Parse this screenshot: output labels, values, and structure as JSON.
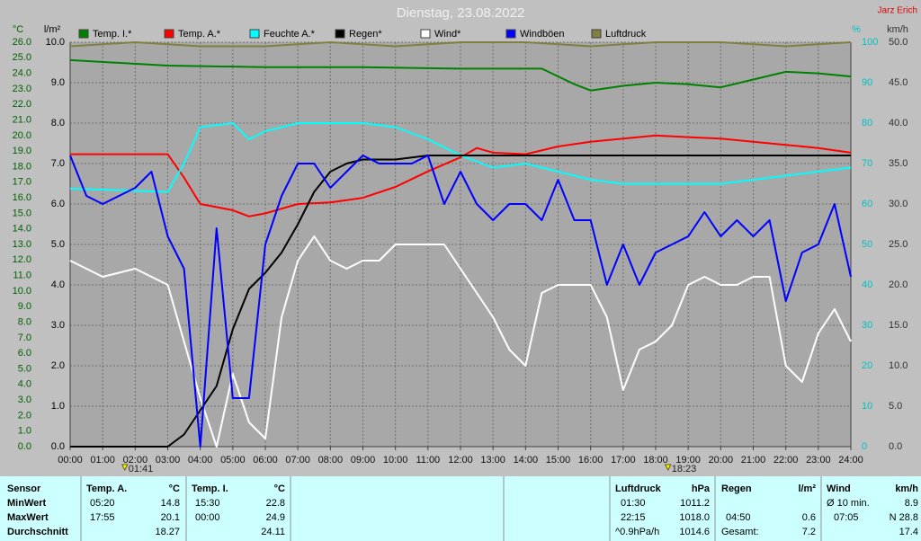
{
  "chart_data": {
    "type": "line",
    "title": "Dienstag, 23.08.2022",
    "author": "Jarz Erich",
    "ylabel": "°C",
    "y2label": "l/m²",
    "y3label": "%",
    "y4label": "km/h",
    "xlim": [
      0,
      24
    ],
    "xticks": [
      {
        "value": 0,
        "label": "00:00"
      },
      {
        "value": 1,
        "label": "01:00"
      },
      {
        "value": 2,
        "label": "02:00"
      },
      {
        "value": 3,
        "label": "03:00"
      },
      {
        "value": 4,
        "label": "04:00"
      },
      {
        "value": 5,
        "label": "05:00"
      },
      {
        "value": 6,
        "label": "06:00"
      },
      {
        "value": 7,
        "label": "07:00"
      },
      {
        "value": 8,
        "label": "08:00"
      },
      {
        "value": 9,
        "label": "09:00"
      },
      {
        "value": 10,
        "label": "10:00"
      },
      {
        "value": 11,
        "label": "11:00"
      },
      {
        "value": 12,
        "label": "12:00"
      },
      {
        "value": 13,
        "label": "13:00"
      },
      {
        "value": 14,
        "label": "14:00"
      },
      {
        "value": 15,
        "label": "15:00"
      },
      {
        "value": 16,
        "label": "16:00"
      },
      {
        "value": 17,
        "label": "17:00"
      },
      {
        "value": 18,
        "label": "18:00"
      },
      {
        "value": 19,
        "label": "19:00"
      },
      {
        "value": 20,
        "label": "20:00"
      },
      {
        "value": 21,
        "label": "21:00"
      },
      {
        "value": 22,
        "label": "22:00"
      },
      {
        "value": 23,
        "label": "23:00"
      },
      {
        "value": 24,
        "label": "24:00"
      }
    ],
    "ylim": [
      0,
      26
    ],
    "yticks": [
      {
        "value": 0,
        "label": "0.0"
      },
      {
        "value": 1,
        "label": "1.0"
      },
      {
        "value": 2,
        "label": "2.0"
      },
      {
        "value": 3,
        "label": "3.0"
      },
      {
        "value": 4,
        "label": "4.0"
      },
      {
        "value": 5,
        "label": "5.0"
      },
      {
        "value": 6,
        "label": "6.0"
      },
      {
        "value": 7,
        "label": "7.0"
      },
      {
        "value": 8,
        "label": "8.0"
      },
      {
        "value": 9,
        "label": "9.0"
      },
      {
        "value": 10,
        "label": "10.0"
      },
      {
        "value": 11,
        "label": "11.0"
      },
      {
        "value": 12,
        "label": "12.0"
      },
      {
        "value": 13,
        "label": "13.0"
      },
      {
        "value": 14,
        "label": "14.0"
      },
      {
        "value": 15,
        "label": "15.0"
      },
      {
        "value": 16,
        "label": "16.0"
      },
      {
        "value": 17,
        "label": "17.0"
      },
      {
        "value": 18,
        "label": "18.0"
      },
      {
        "value": 19,
        "label": "19.0"
      },
      {
        "value": 20,
        "label": "20.0"
      },
      {
        "value": 21,
        "label": "21.0"
      },
      {
        "value": 22,
        "label": "22.0"
      },
      {
        "value": 23,
        "label": "23.0"
      },
      {
        "value": 24,
        "label": "24.0"
      },
      {
        "value": 25,
        "label": "25.0"
      },
      {
        "value": 26,
        "label": "26.0"
      }
    ],
    "y2lim": [
      0,
      10
    ],
    "y2ticks": [
      {
        "value": 0,
        "label": "0.0"
      },
      {
        "value": 1,
        "label": "1.0"
      },
      {
        "value": 2,
        "label": "2.0"
      },
      {
        "value": 3,
        "label": "3.0"
      },
      {
        "value": 4,
        "label": "4.0"
      },
      {
        "value": 5,
        "label": "5.0"
      },
      {
        "value": 6,
        "label": "6.0"
      },
      {
        "value": 7,
        "label": "7.0"
      },
      {
        "value": 8,
        "label": "8.0"
      },
      {
        "value": 9,
        "label": "9.0"
      },
      {
        "value": 10,
        "label": "10.0"
      }
    ],
    "y3lim": [
      0,
      100
    ],
    "y3ticks": [
      0,
      10,
      20,
      30,
      40,
      50,
      60,
      70,
      80,
      90,
      100
    ],
    "y4lim": [
      0,
      50
    ],
    "y4ticks": [
      {
        "value": 0,
        "label": "0.0"
      },
      {
        "value": 5,
        "label": "5.0"
      },
      {
        "value": 10,
        "label": "10.0"
      },
      {
        "value": 15,
        "label": "15.0"
      },
      {
        "value": 20,
        "label": "20.0"
      },
      {
        "value": 25,
        "label": "25.0"
      },
      {
        "value": 30,
        "label": "30.0"
      },
      {
        "value": 35,
        "label": "35.0"
      },
      {
        "value": 40,
        "label": "40.0"
      },
      {
        "value": 45,
        "label": "45.0"
      },
      {
        "value": 50,
        "label": "50.0"
      }
    ],
    "grid": true,
    "series": [
      {
        "name": "Temp. I.*",
        "color": "#008000",
        "axis": "y",
        "x": [
          0,
          3,
          6,
          9,
          12,
          14.5,
          15.5,
          16,
          17,
          18,
          19,
          20,
          21,
          22,
          23,
          24
        ],
        "values": [
          24.85,
          24.5,
          24.4,
          24.4,
          24.3,
          24.3,
          23.3,
          22.9,
          23.2,
          23.4,
          23.3,
          23.1,
          23.6,
          24.1,
          24.0,
          23.8
        ]
      },
      {
        "name": "Temp. A.*",
        "color": "#ff0000",
        "axis": "y",
        "x": [
          0,
          3,
          3.5,
          4,
          5,
          5.5,
          6,
          7,
          8,
          9,
          10,
          11,
          12,
          12.5,
          13,
          14,
          15,
          16,
          17,
          18,
          19,
          20,
          21,
          22,
          23,
          24
        ],
        "values": [
          18.8,
          18.8,
          17.3,
          15.6,
          15.2,
          14.8,
          15.0,
          15.6,
          15.7,
          16.0,
          16.7,
          17.7,
          18.6,
          19.2,
          18.9,
          18.8,
          19.3,
          19.6,
          19.8,
          20.0,
          19.9,
          19.8,
          19.6,
          19.4,
          19.2,
          18.9
        ]
      },
      {
        "name": "Feuchte A.*",
        "color": "#00ffff",
        "axis": "y3",
        "x": [
          0,
          3,
          3.5,
          4,
          5,
          5.5,
          6,
          7,
          8,
          9,
          10,
          11,
          12,
          13,
          14,
          15,
          16,
          17,
          18,
          19,
          20,
          21,
          22,
          23,
          24
        ],
        "values": [
          63.8,
          63,
          70,
          79,
          80,
          76,
          78,
          80,
          80,
          80,
          79,
          76,
          72,
          69,
          70,
          68,
          66,
          65,
          65,
          65,
          65,
          66,
          67,
          68,
          69
        ]
      },
      {
        "name": "Regen*",
        "color": "#000000",
        "axis": "y2",
        "x": [
          0,
          3,
          3.5,
          4,
          4.5,
          5,
          5.5,
          6,
          6.5,
          7,
          7.5,
          8,
          8.5,
          9,
          10,
          11,
          24
        ],
        "values": [
          0,
          0,
          0.3,
          0.9,
          1.5,
          2.9,
          3.9,
          4.3,
          4.8,
          5.5,
          6.3,
          6.8,
          7.0,
          7.1,
          7.1,
          7.2,
          7.2
        ]
      },
      {
        "name": "Wind*",
        "color": "#ffffff",
        "axis": "y4",
        "x": [
          0,
          1,
          2,
          3,
          3.5,
          4,
          4.5,
          5,
          5.5,
          6,
          6.5,
          7,
          7.5,
          8,
          8.5,
          9,
          9.5,
          10,
          10.5,
          11,
          11.5,
          12,
          12.5,
          13,
          13.5,
          14,
          14.5,
          15,
          15.5,
          16,
          16.5,
          17,
          17.5,
          18,
          18.5,
          19,
          19.5,
          20,
          20.5,
          21,
          21.5,
          22,
          22.5,
          23,
          23.5,
          24
        ],
        "values": [
          23,
          21,
          22,
          20,
          13,
          6,
          0,
          9,
          3,
          1,
          16,
          23,
          26,
          23,
          22,
          23,
          23,
          25,
          25,
          25,
          25,
          22,
          19,
          16,
          12,
          10,
          19,
          20,
          20,
          20,
          16,
          7,
          12,
          13,
          15,
          20,
          21,
          20,
          20,
          21,
          21,
          10,
          8,
          14,
          17,
          13
        ]
      },
      {
        "name": "Windböen",
        "color": "#0000ff",
        "axis": "y4",
        "x": [
          0,
          0.5,
          1,
          1.5,
          2,
          2.5,
          3,
          3.5,
          4,
          4.5,
          5,
          5.5,
          6,
          6.5,
          7,
          7.5,
          8,
          8.5,
          9,
          9.5,
          10,
          10.5,
          11,
          11.5,
          12,
          12.5,
          13,
          13.5,
          14,
          14.5,
          15,
          15.5,
          16,
          16.5,
          17,
          17.5,
          18,
          18.5,
          19,
          19.5,
          20,
          20.5,
          21,
          21.5,
          22,
          22.5,
          23,
          23.5,
          24
        ],
        "values": [
          36,
          31,
          30,
          31,
          32,
          34,
          26,
          22,
          0,
          27,
          6,
          6,
          25,
          31,
          35,
          35,
          32,
          34,
          36,
          35,
          35,
          35,
          36,
          30,
          34,
          30,
          28,
          30,
          30,
          28,
          33,
          28,
          28,
          20,
          25,
          20,
          24,
          25,
          26,
          29,
          26,
          28,
          26,
          28,
          18,
          24,
          25,
          30,
          21
        ]
      },
      {
        "name": "Luftdruck",
        "color": "#808040",
        "axis": "y3",
        "x": [
          0,
          2,
          4,
          6,
          8,
          10,
          12,
          14,
          16,
          18,
          20,
          22,
          24
        ],
        "values": [
          99,
          100,
          99,
          99,
          100,
          99,
          100,
          100,
          99,
          100,
          100,
          99,
          100
        ]
      }
    ],
    "annotations": [
      {
        "label": "01:41",
        "x": 1.68
      },
      {
        "label": "18:23",
        "x": 18.38
      }
    ]
  },
  "table": {
    "sensor": {
      "header": "Sensor",
      "rows": [
        "MinWert",
        "MaxWert",
        "Durchschnitt"
      ]
    },
    "temp_a": {
      "header": "Temp. A.",
      "unit": "°C",
      "min": [
        "05:20",
        "14.8"
      ],
      "max": [
        "17:55",
        "20.1"
      ],
      "avg": [
        "18.27"
      ]
    },
    "temp_i": {
      "header": "Temp. I.",
      "unit": "°C",
      "min": [
        "15:30",
        "22.8"
      ],
      "max": [
        "00:00",
        "24.9"
      ],
      "avg": [
        "24.11"
      ]
    },
    "pressure": {
      "header": "Luftdruck",
      "unit": "hPa",
      "min": [
        "01:30",
        "1011.2"
      ],
      "max": [
        "22:15",
        "1018.0"
      ],
      "avg": [
        "^0.9hPa/h",
        "1014.6"
      ]
    },
    "rain": {
      "header": "Regen",
      "unit": "l/m²",
      "max": [
        "04:50",
        "0.6"
      ],
      "avg": [
        "Gesamt:",
        "7.2"
      ]
    },
    "wind": {
      "header": "Wind",
      "unit": "km/h",
      "min": [
        "Ø 10 min.",
        "8.9"
      ],
      "max": [
        "07:05",
        "N 28.8"
      ],
      "avg": [
        "17.4"
      ]
    }
  }
}
